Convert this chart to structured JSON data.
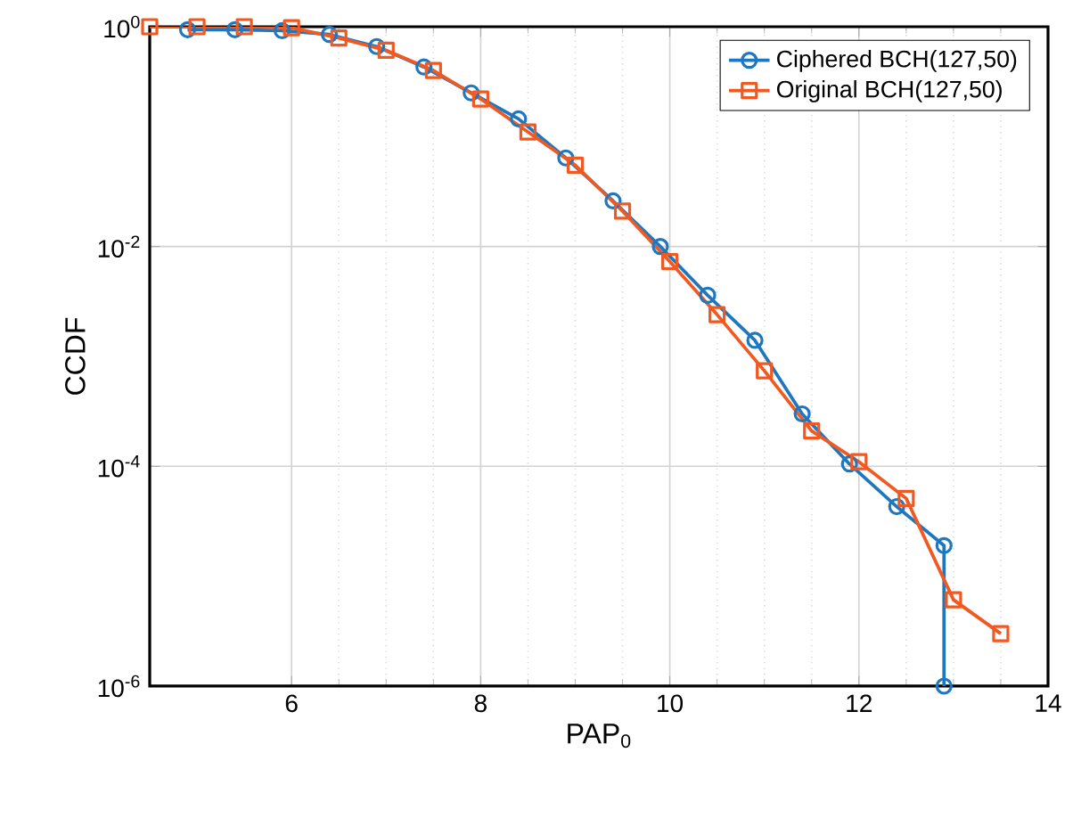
{
  "chart_data": {
    "type": "line",
    "xlabel": "PAP$_{0}$",
    "ylabel": "CCDF",
    "log": "y",
    "grid": true,
    "legend": "top right",
    "xlim": [
      4.5,
      14
    ],
    "xticks": [
      6,
      8,
      10,
      12,
      14
    ],
    "ylim": [
      1e-06,
      1
    ],
    "yticks": [
      {
        "value": 1e-06,
        "label": "10$^{-6}$"
      },
      {
        "value": 0.0001,
        "label": "10$^{-4}$"
      },
      {
        "value": 0.01,
        "label": "10$^{-2}$"
      },
      {
        "value": 1,
        "label": "10$^{0}$"
      }
    ],
    "series": [
      {
        "name": "Ciphered BCH(127,50)",
        "color": "#1f77c0",
        "marker": "circle",
        "x": [
          4.9,
          5.4,
          5.9,
          6.4,
          6.9,
          7.4,
          7.9,
          8.4,
          8.9,
          9.4,
          9.9,
          10.4,
          10.9,
          11.4,
          11.9,
          12.4,
          12.9,
          12.9
        ],
        "values": [
          0.94,
          0.94,
          0.92,
          0.85,
          0.66,
          0.43,
          0.25,
          0.145,
          0.064,
          0.026,
          0.01,
          0.0036,
          0.0014,
          0.0003,
          0.000105,
          4.3e-05,
          1.9e-05,
          1e-06
        ]
      },
      {
        "name": "Original BCH(127,50)",
        "color": "#f05a22",
        "marker": "square",
        "x": [
          4.5,
          5.0,
          5.5,
          6.0,
          6.5,
          7.0,
          7.5,
          8.0,
          8.5,
          9.0,
          9.5,
          10.0,
          10.5,
          11.0,
          11.5,
          12.0,
          12.5,
          13.0,
          13.5
        ],
        "values": [
          1.0,
          1.0,
          1.0,
          0.98,
          0.79,
          0.61,
          0.4,
          0.22,
          0.11,
          0.055,
          0.021,
          0.0073,
          0.0024,
          0.00074,
          0.00021,
          0.00011,
          5.1e-05,
          6.1e-06,
          3e-06
        ]
      }
    ]
  }
}
